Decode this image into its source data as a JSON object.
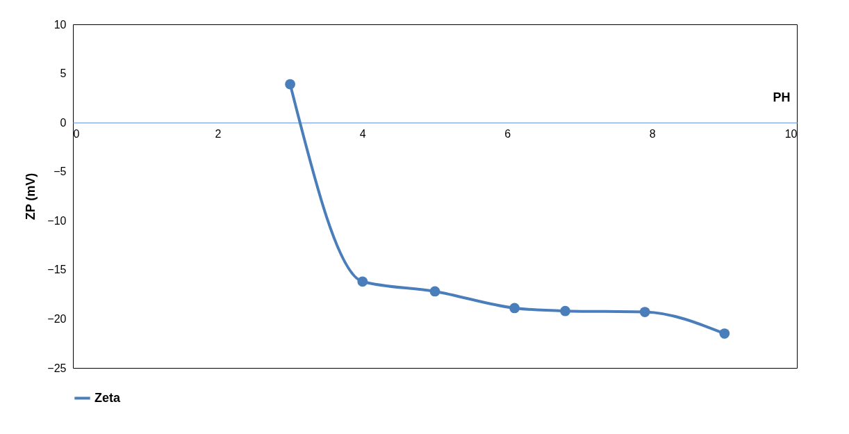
{
  "chart_data": {
    "type": "line",
    "xlabel": "PH",
    "ylabel": "ZP (mV)",
    "x": [
      3,
      4,
      5,
      6.1,
      6.8,
      7.9,
      9
    ],
    "series": [
      {
        "name": "Zeta",
        "color": "#4a7ebb",
        "values": [
          3.9,
          -16.2,
          -17.2,
          -18.9,
          -19.2,
          -19.3,
          -21.5
        ]
      }
    ],
    "xlim": [
      0,
      10
    ],
    "xticks": [
      0,
      2,
      4,
      6,
      8,
      10
    ],
    "ylim": [
      -25,
      10
    ],
    "yticks": [
      -25,
      -20,
      -15,
      -10,
      -5,
      0,
      5,
      10
    ],
    "grid": false,
    "legend": "bottom",
    "marker": "circle",
    "line_style": "solid"
  }
}
